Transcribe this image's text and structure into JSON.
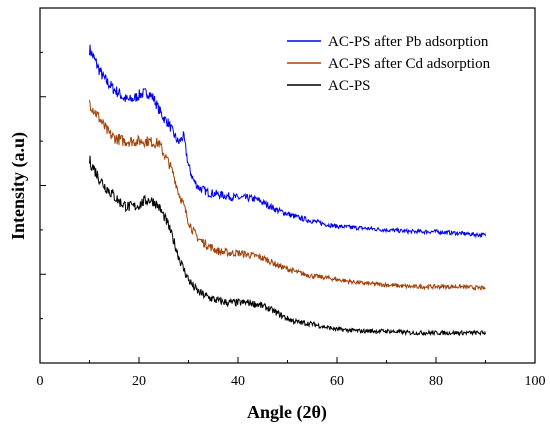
{
  "chart_data": {
    "type": "line",
    "title": "",
    "xlabel": "Angle (2θ)",
    "ylabel": "Intensity (a.u)",
    "xlim": [
      0,
      100
    ],
    "ylim": [
      0,
      1
    ],
    "x_ticks": [
      "0",
      "20",
      "40",
      "60",
      "80",
      "100"
    ],
    "y_tick_labels_shown": false,
    "grid": false,
    "legend_position": "top-right",
    "series": [
      {
        "name": "AC-PS after Pb adsorption",
        "color": "#0000ee",
        "x": [
          10,
          11,
          12,
          13,
          14,
          15,
          16,
          17,
          18,
          19,
          20,
          21,
          22,
          23,
          24,
          25,
          26,
          27,
          28,
          29,
          30,
          31,
          32,
          34,
          36,
          38,
          40,
          42,
          44,
          46,
          48,
          50,
          52,
          55,
          58,
          60,
          65,
          70,
          75,
          80,
          85,
          90
        ],
        "y": [
          0.885,
          0.855,
          0.825,
          0.8,
          0.785,
          0.77,
          0.76,
          0.745,
          0.74,
          0.745,
          0.755,
          0.76,
          0.76,
          0.745,
          0.715,
          0.69,
          0.675,
          0.645,
          0.62,
          0.64,
          0.555,
          0.515,
          0.495,
          0.48,
          0.475,
          0.47,
          0.465,
          0.465,
          0.46,
          0.445,
          0.43,
          0.42,
          0.41,
          0.4,
          0.39,
          0.385,
          0.38,
          0.375,
          0.37,
          0.37,
          0.365,
          0.36
        ]
      },
      {
        "name": "AC-PS after Cd adsorption",
        "color": "#a0430a",
        "x": [
          10,
          11,
          12,
          13,
          14,
          15,
          16,
          17,
          18,
          19,
          20,
          21,
          22,
          23,
          24,
          25,
          26,
          27,
          28,
          29,
          30,
          31,
          32,
          34,
          36,
          38,
          40,
          42,
          44,
          46,
          48,
          50,
          52,
          55,
          58,
          60,
          65,
          70,
          75,
          80,
          85,
          90
        ],
        "y": [
          0.735,
          0.71,
          0.69,
          0.665,
          0.645,
          0.635,
          0.63,
          0.625,
          0.625,
          0.625,
          0.625,
          0.625,
          0.625,
          0.62,
          0.62,
          0.59,
          0.565,
          0.53,
          0.48,
          0.445,
          0.4,
          0.37,
          0.35,
          0.33,
          0.315,
          0.31,
          0.31,
          0.305,
          0.3,
          0.29,
          0.275,
          0.265,
          0.255,
          0.245,
          0.24,
          0.235,
          0.225,
          0.22,
          0.215,
          0.215,
          0.215,
          0.21
        ]
      },
      {
        "name": "AC-PS",
        "color": "#000000",
        "x": [
          10,
          11,
          12,
          13,
          14,
          15,
          16,
          17,
          18,
          19,
          20,
          21,
          22,
          23,
          24,
          25,
          26,
          27,
          28,
          29,
          30,
          31,
          32,
          34,
          36,
          38,
          40,
          42,
          44,
          46,
          48,
          50,
          52,
          55,
          58,
          60,
          65,
          70,
          75,
          80,
          85,
          90
        ],
        "y": [
          0.57,
          0.545,
          0.52,
          0.5,
          0.485,
          0.47,
          0.455,
          0.445,
          0.44,
          0.44,
          0.445,
          0.455,
          0.46,
          0.455,
          0.44,
          0.415,
          0.385,
          0.345,
          0.3,
          0.265,
          0.235,
          0.215,
          0.2,
          0.185,
          0.175,
          0.17,
          0.17,
          0.17,
          0.165,
          0.155,
          0.14,
          0.125,
          0.115,
          0.11,
          0.1,
          0.095,
          0.09,
          0.09,
          0.085,
          0.085,
          0.085,
          0.085
        ]
      }
    ]
  }
}
